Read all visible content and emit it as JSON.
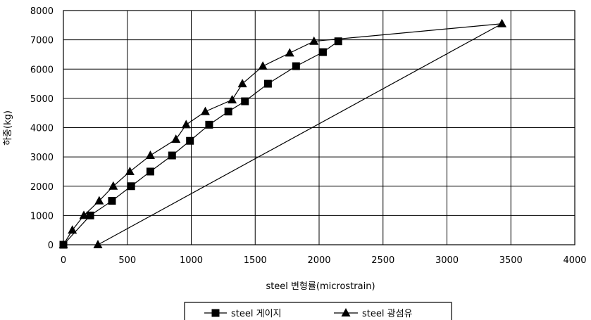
{
  "chart_data": {
    "type": "line",
    "title": "",
    "xlabel": "steel 변형률(microstrain)",
    "ylabel": "하중(kg)",
    "xlim": [
      0,
      4000
    ],
    "ylim": [
      0,
      8000
    ],
    "x_ticks": [
      "0",
      "500",
      "1000",
      "1500",
      "2000",
      "2500",
      "3000",
      "3500",
      "4000"
    ],
    "y_ticks": [
      "0",
      "1000",
      "2000",
      "3000",
      "4000",
      "5000",
      "6000",
      "7000",
      "8000"
    ],
    "grid": true,
    "legend_position": "bottom",
    "series": [
      {
        "name": "steel 게이지",
        "marker": "square",
        "points": [
          {
            "x": 0,
            "y": 0
          },
          {
            "x": 210,
            "y": 1000
          },
          {
            "x": 380,
            "y": 1500
          },
          {
            "x": 530,
            "y": 2000
          },
          {
            "x": 680,
            "y": 2500
          },
          {
            "x": 850,
            "y": 3050
          },
          {
            "x": 990,
            "y": 3550
          },
          {
            "x": 1140,
            "y": 4100
          },
          {
            "x": 1290,
            "y": 4550
          },
          {
            "x": 1420,
            "y": 4900
          },
          {
            "x": 1600,
            "y": 5500
          },
          {
            "x": 1820,
            "y": 6100
          },
          {
            "x": 2030,
            "y": 6580
          },
          {
            "x": 2150,
            "y": 6950
          }
        ]
      },
      {
        "name": "steel 광섬유",
        "marker": "triangle",
        "points": [
          {
            "x": 0,
            "y": 0
          },
          {
            "x": 70,
            "y": 500
          },
          {
            "x": 160,
            "y": 1000
          },
          {
            "x": 280,
            "y": 1500
          },
          {
            "x": 390,
            "y": 2000
          },
          {
            "x": 520,
            "y": 2500
          },
          {
            "x": 680,
            "y": 3050
          },
          {
            "x": 880,
            "y": 3600
          },
          {
            "x": 960,
            "y": 4100
          },
          {
            "x": 1110,
            "y": 4550
          },
          {
            "x": 1320,
            "y": 4950
          },
          {
            "x": 1400,
            "y": 5500
          },
          {
            "x": 1560,
            "y": 6100
          },
          {
            "x": 1770,
            "y": 6550
          },
          {
            "x": 1960,
            "y": 6950
          },
          {
            "x": 3430,
            "y": 7550
          },
          {
            "x": 270,
            "y": 0
          }
        ]
      }
    ]
  }
}
